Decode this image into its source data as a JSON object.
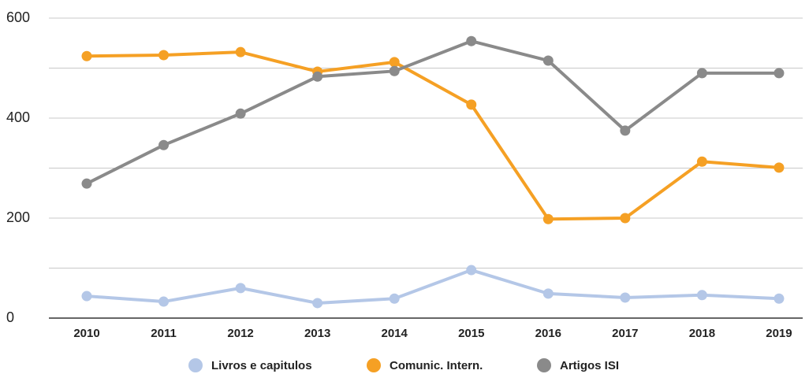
{
  "chart_data": {
    "type": "line",
    "categories": [
      "2010",
      "2011",
      "2012",
      "2013",
      "2014",
      "2015",
      "2016",
      "2017",
      "2018",
      "2019"
    ],
    "series": [
      {
        "name": "Livros e capitulos",
        "color": "#b4c7e7",
        "values": [
          44,
          33,
          60,
          30,
          39,
          96,
          49,
          41,
          46,
          39
        ]
      },
      {
        "name": "Comunic. Intern.",
        "color": "#f5a024",
        "values": [
          524,
          526,
          532,
          493,
          512,
          427,
          198,
          200,
          313,
          301
        ]
      },
      {
        "name": "Artigos ISI",
        "color": "#8a8a8a",
        "values": [
          269,
          346,
          409,
          483,
          494,
          554,
          515,
          375,
          490,
          490
        ]
      }
    ],
    "ylim": [
      0,
      600
    ],
    "yticks": [
      0,
      200,
      400,
      600
    ],
    "minor_yticks": [
      100,
      300,
      500
    ],
    "grid": true,
    "legend": "bottom"
  }
}
